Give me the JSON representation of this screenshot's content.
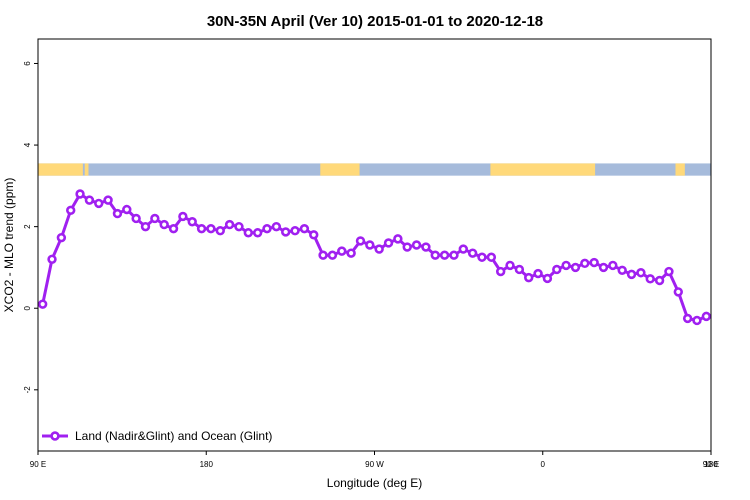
{
  "chart_data": {
    "type": "line",
    "title": "30N-35N April (Ver 10)   2015-01-01 to 2020-12-18",
    "xlabel": "Longitude (deg E)",
    "ylabel": "XCO2 - MLO trend (ppm)",
    "xlim": [
      90,
      450
    ],
    "ylim": [
      -3.5,
      6.6
    ],
    "x_ticks": [
      {
        "value": 90,
        "label": "90 E"
      },
      {
        "value": 180,
        "label": "180"
      },
      {
        "value": 270,
        "label": "90 W"
      },
      {
        "value": 360,
        "label": "0"
      },
      {
        "value": 450,
        "label": "90 E"
      }
    ],
    "x_ticks_extra": [
      {
        "value": 450,
        "label": "180"
      }
    ],
    "y_ticks": [
      {
        "value": -2,
        "label": "-2"
      },
      {
        "value": 0,
        "label": "0"
      },
      {
        "value": 2,
        "label": "2"
      },
      {
        "value": 4,
        "label": "4"
      },
      {
        "value": 6,
        "label": "6"
      }
    ],
    "grid": false,
    "legend_position": "bottom-left",
    "land_ocean_band": {
      "y_range": [
        3.25,
        3.55
      ],
      "land_color": "#FFD97A",
      "ocean_color": "#A6BBDB",
      "land_segments": [
        [
          90,
          114
        ],
        [
          115,
          117
        ],
        [
          241,
          262
        ],
        [
          332,
          388
        ],
        [
          431,
          436
        ]
      ]
    },
    "series": [
      {
        "name": "Land (Nadir&Glint) and Ocean (Glint)",
        "color": "#A020F0",
        "x": [
          92.5,
          97.5,
          102.5,
          107.5,
          112.5,
          117.5,
          122.5,
          127.5,
          132.5,
          137.5,
          142.5,
          147.5,
          152.5,
          157.5,
          162.5,
          167.5,
          172.5,
          177.5,
          182.5,
          187.5,
          192.5,
          197.5,
          202.5,
          207.5,
          212.5,
          217.5,
          222.5,
          227.5,
          232.5,
          237.5,
          242.5,
          247.5,
          252.5,
          257.5,
          262.5,
          267.5,
          272.5,
          277.5,
          282.5,
          287.5,
          292.5,
          297.5,
          302.5,
          307.5,
          312.5,
          317.5,
          322.5,
          327.5,
          332.5,
          337.5,
          342.5,
          347.5,
          352.5,
          357.5,
          362.5,
          367.5,
          372.5,
          377.5,
          382.5,
          387.5,
          392.5,
          397.5,
          402.5,
          407.5,
          412.5,
          417.5,
          422.5,
          427.5,
          432.5,
          437.5,
          442.5,
          447.5
        ],
        "values": [
          0.1,
          1.2,
          1.73,
          2.4,
          2.8,
          2.65,
          2.57,
          2.65,
          2.32,
          2.42,
          2.2,
          2.0,
          2.2,
          2.05,
          1.95,
          2.25,
          2.12,
          1.95,
          1.95,
          1.9,
          2.05,
          2.0,
          1.85,
          1.85,
          1.95,
          2.0,
          1.87,
          1.9,
          1.95,
          1.8,
          1.3,
          1.3,
          1.4,
          1.35,
          1.65,
          1.55,
          1.45,
          1.6,
          1.7,
          1.5,
          1.55,
          1.5,
          1.3,
          1.3,
          1.3,
          1.45,
          1.35,
          1.25,
          1.25,
          0.9,
          1.05,
          0.95,
          0.75,
          0.85,
          0.73,
          0.95,
          1.05,
          1.0,
          1.1,
          1.12,
          1.0,
          1.05,
          0.93,
          0.83,
          0.87,
          0.72,
          0.68,
          0.9,
          0.4,
          -0.25,
          -0.3,
          -0.2
        ]
      }
    ]
  }
}
